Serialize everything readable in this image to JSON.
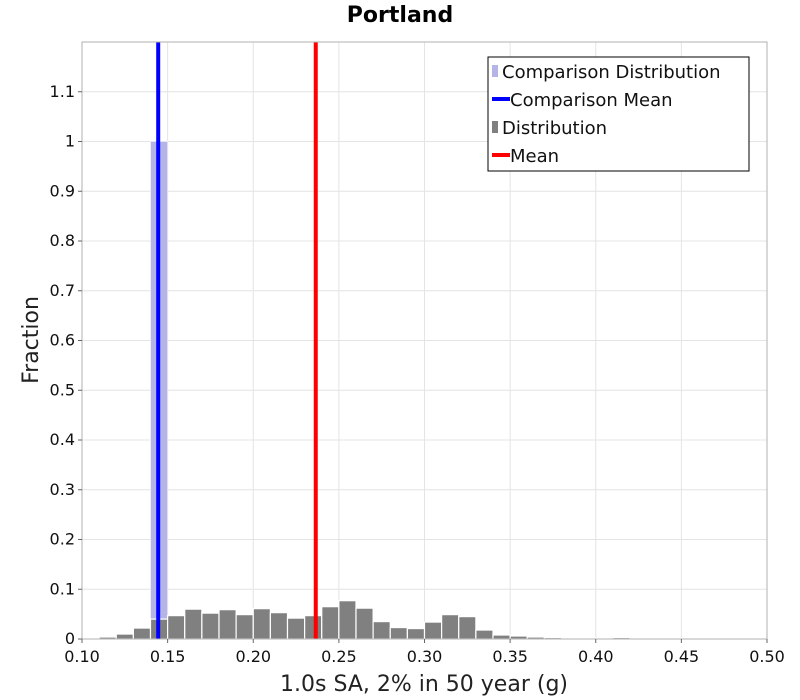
{
  "chart_data": {
    "type": "bar",
    "title": "Portland",
    "xlabel": "1.0s SA, 2% in 50 year (g)",
    "ylabel": "Fraction",
    "xlim": [
      0.1,
      0.5
    ],
    "ylim": [
      0,
      1.2
    ],
    "x_ticks": [
      "0.10",
      "0.15",
      "0.20",
      "0.25",
      "0.30",
      "0.35",
      "0.40",
      "0.45",
      "0.50"
    ],
    "y_ticks": [
      "0",
      "0.1",
      "0.2",
      "0.3",
      "0.4",
      "0.5",
      "0.6",
      "0.7",
      "0.8",
      "0.9",
      "1",
      "1.1"
    ],
    "grid": true,
    "legend_position": "top-right",
    "bin_width": 0.01,
    "series": [
      {
        "name": "Comparison Distribution",
        "kind": "histogram",
        "color": "#b4b4e6",
        "bins": [
          {
            "x": 0.145,
            "value": 1.0
          }
        ]
      },
      {
        "name": "Distribution",
        "kind": "histogram",
        "color": "#808080",
        "bins": [
          {
            "x": 0.115,
            "value": 0.004
          },
          {
            "x": 0.125,
            "value": 0.01
          },
          {
            "x": 0.135,
            "value": 0.022
          },
          {
            "x": 0.145,
            "value": 0.04
          },
          {
            "x": 0.155,
            "value": 0.047
          },
          {
            "x": 0.165,
            "value": 0.06
          },
          {
            "x": 0.175,
            "value": 0.052
          },
          {
            "x": 0.185,
            "value": 0.059
          },
          {
            "x": 0.195,
            "value": 0.049
          },
          {
            "x": 0.205,
            "value": 0.061
          },
          {
            "x": 0.215,
            "value": 0.053
          },
          {
            "x": 0.225,
            "value": 0.042
          },
          {
            "x": 0.235,
            "value": 0.047
          },
          {
            "x": 0.245,
            "value": 0.065
          },
          {
            "x": 0.255,
            "value": 0.077
          },
          {
            "x": 0.265,
            "value": 0.062
          },
          {
            "x": 0.275,
            "value": 0.035
          },
          {
            "x": 0.285,
            "value": 0.023
          },
          {
            "x": 0.295,
            "value": 0.021
          },
          {
            "x": 0.305,
            "value": 0.034
          },
          {
            "x": 0.315,
            "value": 0.049
          },
          {
            "x": 0.325,
            "value": 0.045
          },
          {
            "x": 0.335,
            "value": 0.018
          },
          {
            "x": 0.345,
            "value": 0.008
          },
          {
            "x": 0.355,
            "value": 0.006
          },
          {
            "x": 0.365,
            "value": 0.004
          },
          {
            "x": 0.375,
            "value": 0.003
          },
          {
            "x": 0.385,
            "value": 0.002
          },
          {
            "x": 0.395,
            "value": 0.001
          },
          {
            "x": 0.405,
            "value": 0.002
          },
          {
            "x": 0.415,
            "value": 0.003
          },
          {
            "x": 0.425,
            "value": 0.002
          },
          {
            "x": 0.435,
            "value": 0.002
          },
          {
            "x": 0.445,
            "value": 0.001
          },
          {
            "x": 0.455,
            "value": 0.001
          },
          {
            "x": 0.465,
            "value": 0.001
          },
          {
            "x": 0.475,
            "value": 0.001
          },
          {
            "x": 0.485,
            "value": 0.001
          }
        ]
      },
      {
        "name": "Comparison Mean",
        "kind": "vline",
        "color": "#0000ff",
        "x": 0.1445
      },
      {
        "name": "Mean",
        "kind": "vline",
        "color": "#ff0000",
        "x": 0.2365
      }
    ],
    "legend": [
      {
        "label": "Comparison Distribution",
        "marker": "bar",
        "color": "#b4b4e6"
      },
      {
        "label": "Comparison Mean",
        "marker": "line",
        "color": "#0000ff"
      },
      {
        "label": "Distribution",
        "marker": "bar",
        "color": "#808080"
      },
      {
        "label": "Mean",
        "marker": "line",
        "color": "#ff0000"
      }
    ]
  }
}
